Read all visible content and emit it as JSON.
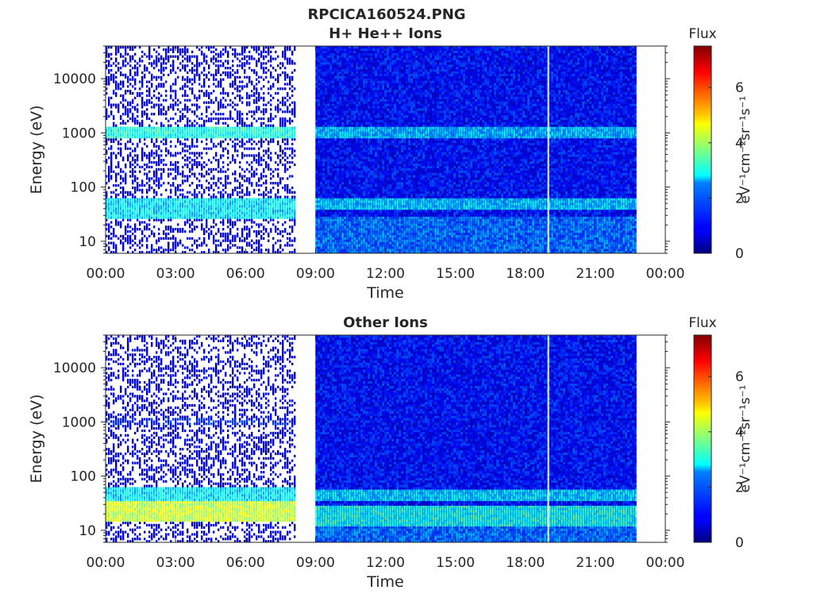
{
  "figure": {
    "title_line1": "RPCICA160524.PNG",
    "title_line2": "H+ He++ Ions"
  },
  "chart_data": [
    {
      "type": "heatmap",
      "title": "H+ He++ Ions",
      "xlabel": "Time",
      "ylabel": "Energy (eV)",
      "x_tick_labels": [
        "00:00",
        "03:00",
        "06:00",
        "09:00",
        "12:00",
        "15:00",
        "18:00",
        "21:00",
        "00:00"
      ],
      "x_ticks_hours": [
        0,
        3,
        6,
        9,
        12,
        15,
        18,
        21,
        24
      ],
      "xlim_hours": [
        0,
        24
      ],
      "y_scale": "log",
      "y_ticks": [
        10,
        100,
        1000,
        10000
      ],
      "y_tick_labels": [
        "10",
        "100",
        "1000",
        "10000"
      ],
      "ylim": [
        6,
        40000
      ],
      "data_segments_hours": [
        [
          0,
          8.1
        ],
        [
          9.0,
          22.7
        ]
      ],
      "data_gaps_hours": [
        [
          8.1,
          9.0
        ],
        [
          22.7,
          24
        ]
      ],
      "vertical_gap_hour": 18.95,
      "bands": [
        {
          "segment": 0,
          "energy_range_eV": [
            800,
            1300
          ],
          "level": 3.0
        },
        {
          "segment": 0,
          "energy_range_eV": [
            25,
            60
          ],
          "level": 2.6
        },
        {
          "segment": 1,
          "energy_range_eV": [
            800,
            1300
          ],
          "level": 2.4
        },
        {
          "segment": 1,
          "energy_range_eV": [
            40,
            60
          ],
          "level": 2.5
        }
      ],
      "colorbar": {
        "label": "Flux",
        "unit_label": "eV⁻¹cm⁻²sr⁻¹s⁻¹",
        "range": [
          0,
          7.5
        ],
        "ticks": [
          0,
          2,
          4,
          6
        ],
        "colormap": "jet"
      }
    },
    {
      "type": "heatmap",
      "title": "Other Ions",
      "xlabel": "Time",
      "ylabel": "Energy (eV)",
      "x_tick_labels": [
        "00:00",
        "03:00",
        "06:00",
        "09:00",
        "12:00",
        "15:00",
        "18:00",
        "21:00",
        "00:00"
      ],
      "x_ticks_hours": [
        0,
        3,
        6,
        9,
        12,
        15,
        18,
        21,
        24
      ],
      "xlim_hours": [
        0,
        24
      ],
      "y_scale": "log",
      "y_ticks": [
        10,
        100,
        1000,
        10000
      ],
      "y_tick_labels": [
        "10",
        "100",
        "1000",
        "10000"
      ],
      "ylim": [
        6,
        40000
      ],
      "data_segments_hours": [
        [
          0,
          8.1
        ],
        [
          9.0,
          22.7
        ]
      ],
      "data_gaps_hours": [
        [
          8.1,
          9.0
        ],
        [
          22.7,
          24
        ]
      ],
      "vertical_gap_hour": 18.95,
      "bands": [
        {
          "segment": 0,
          "energy_range_eV": [
            15,
            35
          ],
          "level": 4.3
        },
        {
          "segment": 0,
          "energy_range_eV": [
            35,
            60
          ],
          "level": 2.6
        },
        {
          "segment": 0,
          "energy_range_eV": [
            850,
            1200
          ],
          "level": 1.0
        },
        {
          "segment": 1,
          "energy_range_eV": [
            12,
            30
          ],
          "level": 3.0
        },
        {
          "segment": 1,
          "energy_range_eV": [
            35,
            55
          ],
          "level": 2.6
        }
      ],
      "colorbar": {
        "label": "Flux",
        "unit_label": "eV⁻¹cm⁻²sr⁻¹s⁻¹",
        "range": [
          0,
          7.5
        ],
        "ticks": [
          0,
          2,
          4,
          6
        ],
        "colormap": "jet"
      }
    }
  ]
}
